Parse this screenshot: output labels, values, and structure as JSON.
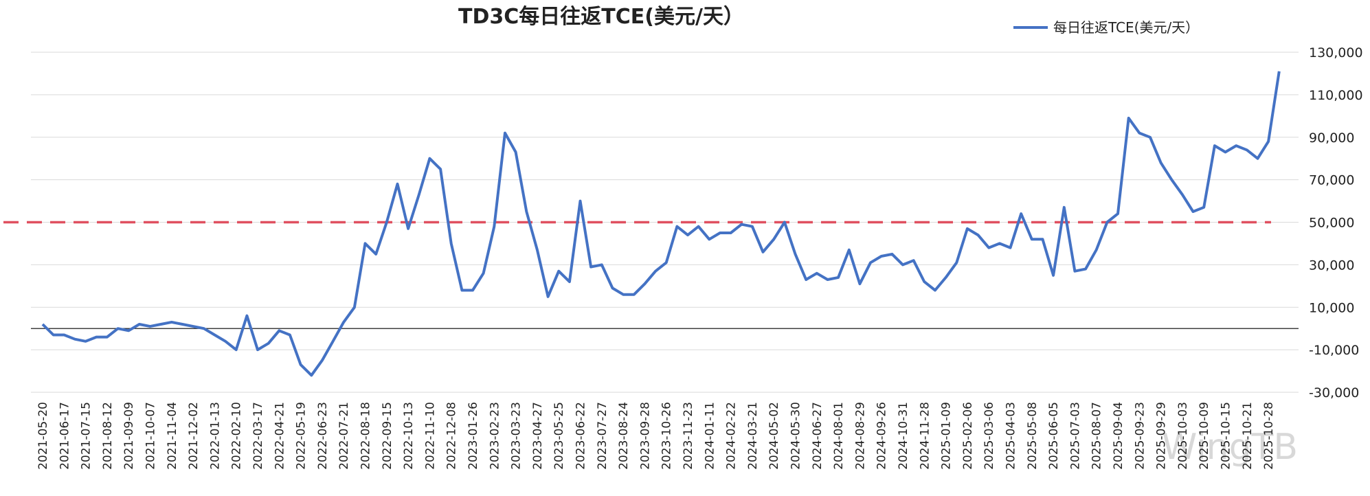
{
  "chart_data": {
    "type": "line",
    "title": "TD3C每日往返TCE(美元/天）",
    "categories": [
      "2021-05-20",
      null,
      "2021-06-17",
      null,
      "2021-07-15",
      null,
      "2021-08-12",
      null,
      "2021-09-09",
      null,
      "2021-10-07",
      null,
      "2021-11-04",
      null,
      "2021-12-02",
      null,
      "2022-01-13",
      null,
      "2022-02-10",
      null,
      "2022-03-17",
      null,
      "2022-04-21",
      null,
      "2022-05-19",
      null,
      "2022-06-23",
      null,
      "2022-07-21",
      null,
      "2022-08-18",
      null,
      "2022-09-15",
      null,
      "2022-10-13",
      null,
      "2022-11-10",
      null,
      "2022-12-08",
      null,
      "2023-01-26",
      null,
      "2023-02-23",
      null,
      "2023-03-23",
      null,
      "2023-04-27",
      null,
      "2023-05-25",
      null,
      "2023-06-22",
      null,
      "2023-07-27",
      null,
      "2023-08-24",
      null,
      "2023-09-28",
      null,
      "2023-10-26",
      null,
      "2023-11-23",
      null,
      "2024-01-11",
      null,
      "2024-02-22",
      null,
      "2024-03-21",
      null,
      "2024-05-02",
      null,
      "2024-05-30",
      null,
      "2024-06-27",
      null,
      "2024-08-01",
      null,
      "2024-08-29",
      null,
      "2024-09-26",
      null,
      "2024-10-31",
      null,
      "2024-11-28",
      null,
      "2025-01-09",
      null,
      "2025-02-06",
      null,
      "2025-03-06",
      null,
      "2025-04-03",
      null,
      "2025-05-08",
      null,
      "2025-06-05",
      null,
      "2025-07-03",
      null,
      "2025-08-07",
      null,
      "2025-09-04",
      null,
      "2025-09-23",
      null,
      "2025-09-29",
      null,
      "2025-10-03",
      null,
      "2025-10-09",
      null,
      "2025-10-15",
      null,
      "2025-10-21",
      null,
      "2025-10-28",
      null
    ],
    "series": [
      {
        "name": "每日往返TCE(美元/天）",
        "color": "#4472c4",
        "values": [
          2000,
          -3000,
          -3000,
          -5000,
          -6000,
          -4000,
          -4000,
          0,
          -1000,
          2000,
          1000,
          2000,
          3000,
          2000,
          1000,
          0,
          -3000,
          -6000,
          -10000,
          6000,
          -10000,
          -7000,
          -1000,
          -3000,
          -17000,
          -22000,
          -15000,
          -6000,
          3000,
          10000,
          40000,
          35000,
          50000,
          68000,
          47000,
          63000,
          80000,
          75000,
          40000,
          18000,
          18000,
          26000,
          48000,
          92000,
          83000,
          55000,
          37000,
          15000,
          27000,
          22000,
          60000,
          29000,
          30000,
          19000,
          16000,
          16000,
          21000,
          27000,
          31000,
          48000,
          44000,
          48000,
          42000,
          45000,
          45000,
          49000,
          48000,
          36000,
          42000,
          50000,
          35000,
          23000,
          26000,
          23000,
          24000,
          37000,
          21000,
          31000,
          34000,
          35000,
          30000,
          32000,
          22000,
          18000,
          24000,
          31000,
          47000,
          44000,
          38000,
          40000,
          38000,
          54000,
          42000,
          42000,
          25000,
          57000,
          27000,
          28000,
          37000,
          50000,
          54000,
          99000,
          92000,
          90000,
          78000,
          70000,
          63000,
          55000,
          57000,
          86000,
          83000,
          86000,
          84000,
          80000,
          88000,
          121000
        ]
      }
    ],
    "reference_line": {
      "value": 50000,
      "color": "#e05060"
    },
    "ylim": [
      -30000,
      130000
    ],
    "yticks": [
      {
        "value": -30000,
        "label": "-30,000"
      },
      {
        "value": -10000,
        "label": "-10,000"
      },
      {
        "value": 10000,
        "label": "10,000"
      },
      {
        "value": 30000,
        "label": "30,000"
      },
      {
        "value": 50000,
        "label": "50,000"
      },
      {
        "value": 70000,
        "label": "70,000"
      },
      {
        "value": 90000,
        "label": "90,000"
      },
      {
        "value": 110000,
        "label": "110,000"
      },
      {
        "value": 130000,
        "label": "130,000"
      }
    ],
    "grid": true,
    "legend": "top-right",
    "watermark": "WingTB"
  }
}
